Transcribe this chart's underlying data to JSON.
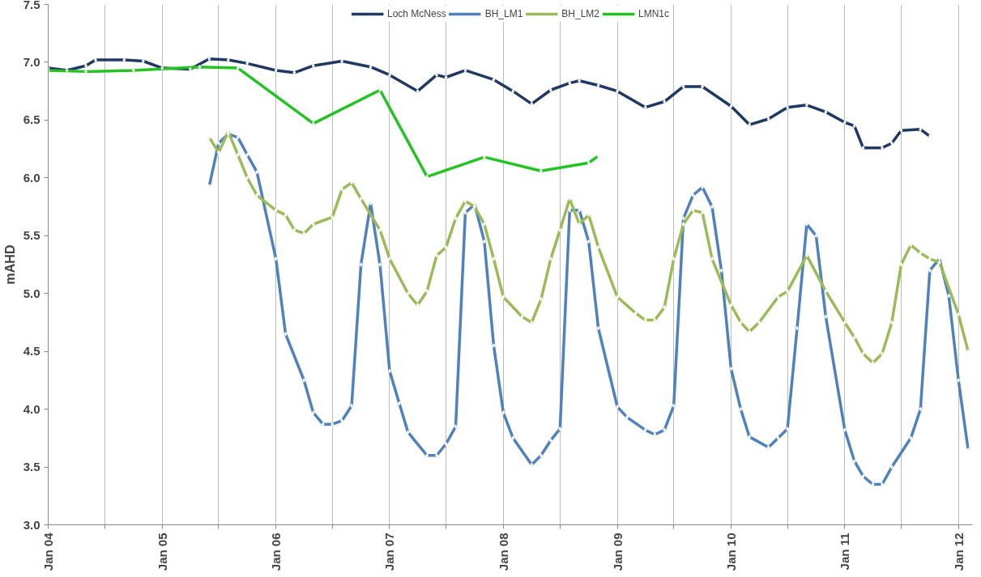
{
  "chart_data": {
    "type": "line",
    "ylabel": "mAHD",
    "legend": "top",
    "grid": "x",
    "marker": "diamond",
    "line_style": "solid",
    "xlim": [
      "2004-01",
      "2012-02-15"
    ],
    "ylim": [
      3.0,
      7.5
    ],
    "yticks": [
      {
        "value": 3.0,
        "label": "3.0"
      },
      {
        "value": 3.5,
        "label": "3.5"
      },
      {
        "value": 4.0,
        "label": "4.0"
      },
      {
        "value": 4.5,
        "label": "4.5"
      },
      {
        "value": 5.0,
        "label": "5.0"
      },
      {
        "value": 5.5,
        "label": "5.5"
      },
      {
        "value": 6.0,
        "label": "6.0"
      },
      {
        "value": 6.5,
        "label": "6.5"
      },
      {
        "value": 7.0,
        "label": "7.0"
      },
      {
        "value": 7.5,
        "label": "7.5"
      }
    ],
    "xticks": [
      {
        "value": "2004-01",
        "label": "Jan 04"
      },
      {
        "value": "2004-07",
        "label": null
      },
      {
        "value": "2005-01",
        "label": "Jan 05"
      },
      {
        "value": "2005-07",
        "label": null
      },
      {
        "value": "2006-01",
        "label": "Jan 06"
      },
      {
        "value": "2006-07",
        "label": null
      },
      {
        "value": "2007-01",
        "label": "Jan 07"
      },
      {
        "value": "2007-07",
        "label": null
      },
      {
        "value": "2008-01",
        "label": "Jan 08"
      },
      {
        "value": "2008-07",
        "label": null
      },
      {
        "value": "2009-01",
        "label": "Jan 09"
      },
      {
        "value": "2009-07",
        "label": null
      },
      {
        "value": "2010-01",
        "label": "Jan 10"
      },
      {
        "value": "2010-07",
        "label": null
      },
      {
        "value": "2011-01",
        "label": "Jan 11"
      },
      {
        "value": "2011-07",
        "label": null
      },
      {
        "value": "2012-01",
        "label": "Jan 12"
      }
    ],
    "series": [
      {
        "name": "Loch McNess",
        "color": "#1f3864",
        "x": [
          "2004-01",
          "2004-03",
          "2004-05",
          "2004-06",
          "2004-09",
          "2004-11",
          "2005-01",
          "2005-04",
          "2005-06",
          "2005-08",
          "2005-10",
          "2006-01",
          "2006-03",
          "2006-05",
          "2006-08",
          "2006-11",
          "2007-01",
          "2007-04",
          "2007-06",
          "2007-07",
          "2007-09",
          "2007-12",
          "2008-02",
          "2008-04",
          "2008-06",
          "2008-08",
          "2008-09",
          "2008-11",
          "2009-01",
          "2009-04",
          "2009-06",
          "2009-08",
          "2009-10",
          "2010-01",
          "2010-03",
          "2010-05",
          "2010-07",
          "2010-09",
          "2010-11",
          "2011-01",
          "2011-02",
          "2011-03",
          "2011-05",
          "2011-06",
          "2011-07",
          "2011-09",
          "2011-10"
        ],
        "values": [
          6.95,
          6.93,
          6.97,
          7.02,
          7.02,
          7.01,
          6.95,
          6.94,
          7.03,
          7.02,
          6.99,
          6.93,
          6.91,
          6.97,
          7.01,
          6.96,
          6.89,
          6.75,
          6.89,
          6.87,
          6.93,
          6.85,
          6.75,
          6.64,
          6.76,
          6.82,
          6.84,
          6.8,
          6.75,
          6.61,
          6.66,
          6.79,
          6.79,
          6.62,
          6.46,
          6.51,
          6.61,
          6.63,
          6.57,
          6.48,
          6.45,
          6.26,
          6.26,
          6.3,
          6.41,
          6.42,
          6.36
        ]
      },
      {
        "name": "BH_LM1",
        "color": "#4f81bd",
        "x": [
          "2005-06",
          "2005-07",
          "2005-08",
          "2005-09",
          "2005-10",
          "2005-11",
          "2006-01",
          "2006-02",
          "2006-04",
          "2006-05",
          "2006-06",
          "2006-07",
          "2006-08",
          "2006-09",
          "2006-10",
          "2006-11",
          "2006-12",
          "2007-01",
          "2007-02",
          "2007-03",
          "2007-05",
          "2007-06",
          "2007-07",
          "2007-08",
          "2007-09",
          "2007-10",
          "2007-11",
          "2007-12",
          "2008-01",
          "2008-02",
          "2008-04",
          "2008-05",
          "2008-06",
          "2008-07",
          "2008-08",
          "2008-09",
          "2008-10",
          "2008-11",
          "2009-01",
          "2009-02",
          "2009-04",
          "2009-05",
          "2009-06",
          "2009-07",
          "2009-08",
          "2009-09",
          "2009-10",
          "2009-11",
          "2009-12",
          "2010-01",
          "2010-02",
          "2010-03",
          "2010-05",
          "2010-06",
          "2010-07",
          "2010-08",
          "2010-09",
          "2010-10",
          "2010-11",
          "2011-01",
          "2011-02",
          "2011-03",
          "2011-04",
          "2011-05",
          "2011-06",
          "2011-08",
          "2011-09",
          "2011-10",
          "2011-11",
          "2011-12",
          "2012-01",
          "2012-02"
        ],
        "values": [
          5.93,
          6.3,
          6.38,
          6.35,
          6.2,
          6.05,
          5.3,
          4.65,
          4.25,
          3.97,
          3.87,
          3.87,
          3.9,
          4.03,
          5.25,
          5.78,
          5.25,
          4.33,
          4.05,
          3.8,
          3.6,
          3.6,
          3.7,
          3.85,
          5.7,
          5.77,
          5.45,
          4.55,
          3.97,
          3.75,
          3.52,
          3.6,
          3.73,
          3.83,
          5.72,
          5.72,
          5.45,
          4.7,
          4.02,
          3.93,
          3.82,
          3.78,
          3.82,
          4.03,
          5.65,
          5.85,
          5.92,
          5.75,
          5.2,
          4.35,
          4.0,
          3.76,
          3.67,
          3.75,
          3.83,
          4.7,
          5.6,
          5.5,
          4.8,
          3.82,
          3.55,
          3.42,
          3.35,
          3.35,
          3.5,
          3.75,
          4.0,
          5.2,
          5.3,
          4.98,
          4.25,
          3.65
        ]
      },
      {
        "name": "BH_LM2",
        "color": "#9bbb59",
        "x": [
          "2005-06",
          "2005-07",
          "2005-08",
          "2005-09",
          "2005-10",
          "2005-11",
          "2006-01",
          "2006-02",
          "2006-03",
          "2006-04",
          "2006-05",
          "2006-07",
          "2006-08",
          "2006-09",
          "2006-10",
          "2006-12",
          "2007-01",
          "2007-03",
          "2007-04",
          "2007-05",
          "2007-06",
          "2007-07",
          "2007-08",
          "2007-09",
          "2007-10",
          "2007-11",
          "2007-12",
          "2008-01",
          "2008-03",
          "2008-04",
          "2008-05",
          "2008-06",
          "2008-07",
          "2008-08",
          "2008-09",
          "2008-10",
          "2008-11",
          "2009-01",
          "2009-03",
          "2009-04",
          "2009-05",
          "2009-06",
          "2009-07",
          "2009-08",
          "2009-09",
          "2009-10",
          "2009-11",
          "2010-01",
          "2010-02",
          "2010-03",
          "2010-04",
          "2010-06",
          "2010-07",
          "2010-09",
          "2010-11",
          "2011-01",
          "2011-02",
          "2011-03",
          "2011-04",
          "2011-05",
          "2011-06",
          "2011-07",
          "2011-08",
          "2011-09",
          "2011-10",
          "2011-11",
          "2012-01",
          "2012-02"
        ],
        "values": [
          6.35,
          6.22,
          6.4,
          6.2,
          6.0,
          5.85,
          5.72,
          5.68,
          5.55,
          5.52,
          5.6,
          5.66,
          5.9,
          5.96,
          5.82,
          5.55,
          5.3,
          5.0,
          4.9,
          5.02,
          5.33,
          5.4,
          5.65,
          5.8,
          5.75,
          5.6,
          5.3,
          4.97,
          4.8,
          4.75,
          4.95,
          5.3,
          5.55,
          5.82,
          5.6,
          5.68,
          5.4,
          4.97,
          4.83,
          4.77,
          4.77,
          4.88,
          5.3,
          5.6,
          5.72,
          5.7,
          5.3,
          4.9,
          4.75,
          4.67,
          4.75,
          4.97,
          5.02,
          5.33,
          5.02,
          4.75,
          4.62,
          4.48,
          4.4,
          4.48,
          4.75,
          5.25,
          5.42,
          5.35,
          5.3,
          5.27,
          4.82,
          4.5
        ]
      },
      {
        "name": "LMN1c",
        "color": "#22c322",
        "x": [
          "2004-01",
          "2004-05",
          "2004-10",
          "2005-05",
          "2005-09",
          "2006-05",
          "2006-12",
          "2007-05",
          "2007-11",
          "2008-05",
          "2008-10",
          "2008-11"
        ],
        "values": [
          6.93,
          6.92,
          6.93,
          6.96,
          6.95,
          6.47,
          6.76,
          6.01,
          6.18,
          6.06,
          6.13,
          6.19
        ]
      }
    ]
  }
}
